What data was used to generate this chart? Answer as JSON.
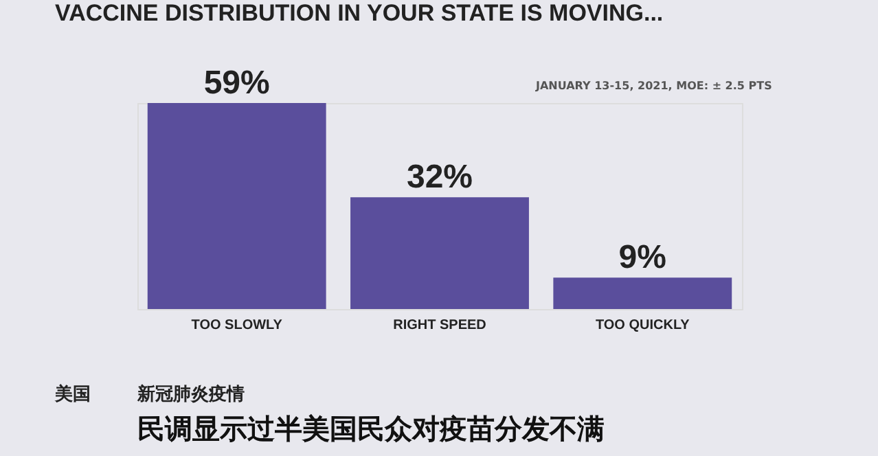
{
  "chart_data": {
    "type": "bar",
    "title": "VACCINE DISTRIBUTION IN YOUR STATE IS MOVING...",
    "categories": [
      "TOO SLOWLY",
      "RIGHT SPEED",
      "TOO QUICKLY"
    ],
    "values": [
      59,
      32,
      9
    ],
    "value_labels": [
      "59%",
      "32%",
      "9%"
    ],
    "color": "#5a4e9c",
    "grid": false,
    "annotations": [
      "JANUARY 13-15, 2021, MOE: ± 2.5 PTS",
      "美国",
      "新冠肺炎疫情",
      "民调显示过半美国民众对疫苗分发不满"
    ]
  }
}
